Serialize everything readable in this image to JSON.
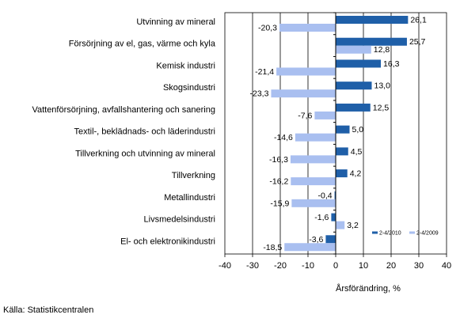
{
  "chart_data": {
    "type": "bar",
    "orientation": "horizontal",
    "categories": [
      "Utvinning av mineral",
      "Försörjning av el, gas, värme och kyla",
      "Kemisk industri",
      "Skogsindustri",
      "Vattenförsörjning, avfallshantering och sanering",
      "Textil-, beklädnads- och läderindustri",
      "Tillverkning och utvinning av mineral",
      "Tillverkning",
      "Metallindustri",
      "Livsmedelsindustri",
      "El- och elektronikindustri"
    ],
    "series": [
      {
        "name": "2-4/2010",
        "color": "#1f5fa8",
        "values": [
          26.1,
          25.7,
          16.3,
          13.0,
          12.5,
          5.0,
          4.5,
          4.2,
          -0.4,
          -1.6,
          -3.6
        ],
        "labels": [
          "26,1",
          "25,7",
          "16,3",
          "13,0",
          "12,5",
          "5,0",
          "4,5",
          "4,2",
          "-0,4",
          "-1,6",
          "-3,6"
        ]
      },
      {
        "name": "2-4/2009",
        "color": "#a9bff0",
        "values": [
          -20.3,
          12.8,
          -21.4,
          -23.3,
          -7.6,
          -14.6,
          -16.3,
          -16.2,
          -15.9,
          3.2,
          -18.5
        ],
        "labels": [
          "-20,3",
          "12,8",
          "-21,4",
          "-23,3",
          "-7,6",
          "-14,6",
          "-16,3",
          "-16,2",
          "-15,9",
          "3,2",
          "-18,5"
        ]
      }
    ],
    "xlim": [
      -40,
      40
    ],
    "xticks": [
      -40,
      -30,
      -20,
      -10,
      0,
      10,
      20,
      30,
      40
    ],
    "xlabel": "Årsförändring, %",
    "grid": "vertical",
    "legend": "bottom-right"
  },
  "source": "Källa: Statistikcentralen"
}
